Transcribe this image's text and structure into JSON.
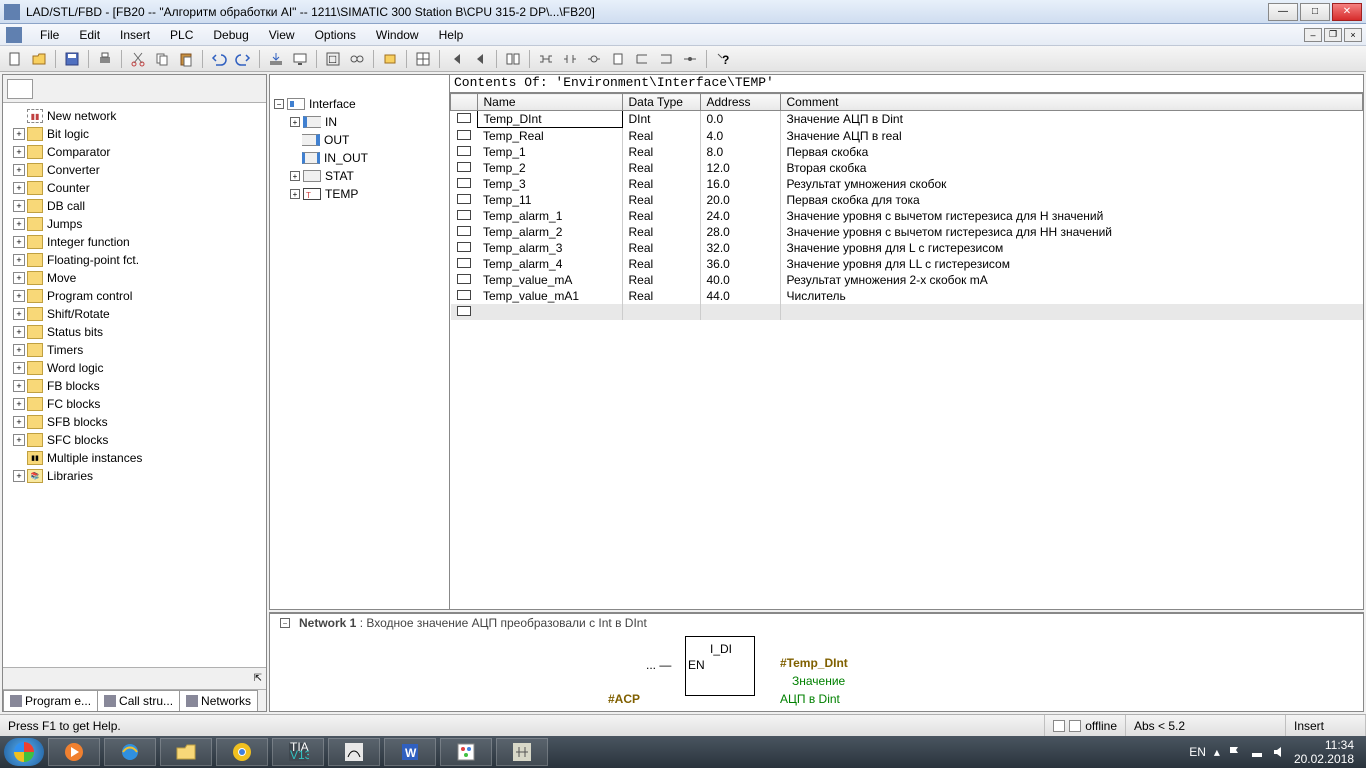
{
  "titlebar": {
    "text": "LAD/STL/FBD  - [FB20 -- \"Алгоритм обработки AI\" -- 1211\\SIMATIC 300 Station B\\CPU 315-2 DP\\...\\FB20]"
  },
  "menu": {
    "items": [
      "File",
      "Edit",
      "Insert",
      "PLC",
      "Debug",
      "View",
      "Options",
      "Window",
      "Help"
    ]
  },
  "sidebar": {
    "new_network": "New network",
    "folders": [
      "Bit logic",
      "Comparator",
      "Converter",
      "Counter",
      "DB call",
      "Jumps",
      "Integer function",
      "Floating-point fct.",
      "Move",
      "Program control",
      "Shift/Rotate",
      "Status bits",
      "Timers",
      "Word logic",
      "FB blocks",
      "FC blocks",
      "SFB blocks",
      "SFC blocks"
    ],
    "multiple": "Multiple instances",
    "libraries": "Libraries",
    "tabs": {
      "program": "Program e...",
      "call": "Call stru...",
      "networks": "Networks"
    }
  },
  "interface": {
    "root": "Interface",
    "items": [
      {
        "label": "IN",
        "cls": "if-in",
        "exp": "+"
      },
      {
        "label": "OUT",
        "cls": "if-out",
        "exp": ""
      },
      {
        "label": "IN_OUT",
        "cls": "if-io",
        "exp": ""
      },
      {
        "label": "STAT",
        "cls": "if-stat",
        "exp": "+"
      },
      {
        "label": "TEMP",
        "cls": "if-temp",
        "exp": "+"
      }
    ]
  },
  "contents_header": "Contents Of: 'Environment\\Interface\\TEMP'",
  "columns": {
    "name": "Name",
    "type": "Data Type",
    "addr": "Address",
    "comment": "Comment"
  },
  "rows": [
    {
      "name": "Temp_DInt",
      "type": "DInt",
      "addr": "0.0",
      "comment": "Значение АЦП в Dint",
      "sel": true
    },
    {
      "name": "Temp_Real",
      "type": "Real",
      "addr": "4.0",
      "comment": "Значение АЦП в real"
    },
    {
      "name": "Temp_1",
      "type": "Real",
      "addr": "8.0",
      "comment": "Первая скобка"
    },
    {
      "name": "Temp_2",
      "type": "Real",
      "addr": "12.0",
      "comment": "Вторая скобка"
    },
    {
      "name": "Temp_3",
      "type": "Real",
      "addr": "16.0",
      "comment": "Результат умножения скобок"
    },
    {
      "name": "Temp_11",
      "type": "Real",
      "addr": "20.0",
      "comment": "Первая скобка для тока"
    },
    {
      "name": "Temp_alarm_1",
      "type": "Real",
      "addr": "24.0",
      "comment": "Значение уровня с вычетом гистерезиса для H значений"
    },
    {
      "name": "Temp_alarm_2",
      "type": "Real",
      "addr": "28.0",
      "comment": "Значение уровня с вычетом гистерезиса для HH значений"
    },
    {
      "name": "Temp_alarm_3",
      "type": "Real",
      "addr": "32.0",
      "comment": "Значение уровня для L с гистерезисом"
    },
    {
      "name": "Temp_alarm_4",
      "type": "Real",
      "addr": "36.0",
      "comment": "Значение уровня для LL с гистерезисом"
    },
    {
      "name": "Temp_value_mA",
      "type": "Real",
      "addr": "40.0",
      "comment": "Результат умножения 2-х скобок mA"
    },
    {
      "name": "Temp_value_mA1",
      "type": "Real",
      "addr": "44.0",
      "comment": "Числитель"
    }
  ],
  "network": {
    "title": "Network 1",
    "desc": "Входное значение АЦП преобразовали с Int в DInt",
    "block": "I_DI",
    "en": "EN",
    "out_var": "#Temp_DInt",
    "out_l1": "Значение",
    "out_l2": "АЦП в Dint",
    "in_var": "#ACP"
  },
  "statusbar": {
    "help": "Press F1 to get Help.",
    "offline": "offline",
    "abs": "Abs < 5.2",
    "insert": "Insert"
  },
  "tray": {
    "lang": "EN",
    "time": "11:34",
    "date": "20.02.2018"
  }
}
